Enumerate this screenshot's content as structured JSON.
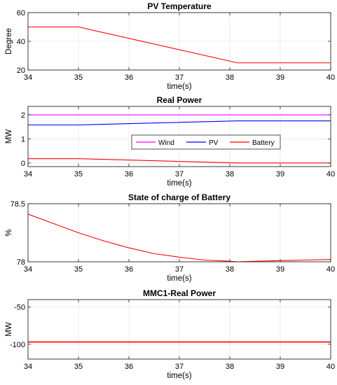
{
  "chart_data": [
    {
      "type": "line",
      "title": "PV Temperature",
      "xlabel": "time(s)",
      "ylabel": "Degree",
      "xlim": [
        34,
        40
      ],
      "ylim": [
        20,
        60
      ],
      "xticks": [
        "34",
        "35",
        "36",
        "37",
        "38",
        "39",
        "40"
      ],
      "yticks": [
        "20",
        "40",
        "60"
      ],
      "grid": true,
      "series": [
        {
          "color": "#ff0000",
          "x": [
            34,
            35,
            38.15,
            40
          ],
          "y": [
            50,
            50,
            25,
            25
          ]
        }
      ]
    },
    {
      "type": "line",
      "title": "Real Power",
      "xlabel": "time(s)",
      "ylabel": "MW",
      "xlim": [
        34,
        40
      ],
      "ylim": [
        -0.15,
        2.35
      ],
      "xticks": [
        "34",
        "35",
        "36",
        "37",
        "38",
        "39",
        "40"
      ],
      "yticks": [
        "0",
        "1",
        "2"
      ],
      "grid": true,
      "legend": "center-right",
      "series": [
        {
          "name": "Wind",
          "color": "#ff00ff",
          "x": [
            34,
            40
          ],
          "y": [
            2.0,
            2.0
          ]
        },
        {
          "name": "PV",
          "color": "#0000ff",
          "x": [
            34,
            35,
            38.15,
            40
          ],
          "y": [
            1.58,
            1.58,
            1.75,
            1.75
          ]
        },
        {
          "name": "Battery",
          "color": "#ff0000",
          "x": [
            34,
            35,
            38.15,
            40
          ],
          "y": [
            0.18,
            0.18,
            0.0,
            0.0
          ]
        }
      ]
    },
    {
      "type": "line",
      "title": "State of charge of Battery",
      "xlabel": "time(s)",
      "ylabel": "%",
      "xlim": [
        34,
        40
      ],
      "ylim": [
        78,
        78.5
      ],
      "xticks": [
        "34",
        "35",
        "36",
        "37",
        "38",
        "39",
        "40"
      ],
      "yticks": [
        "78",
        "78.5"
      ],
      "grid": true,
      "series": [
        {
          "color": "#ff0000",
          "x": [
            34,
            34.5,
            35,
            35.5,
            36,
            36.5,
            37,
            37.5,
            38,
            38.15,
            38.5,
            39,
            39.5,
            40
          ],
          "y": [
            78.41,
            78.33,
            78.25,
            78.18,
            78.12,
            78.07,
            78.04,
            78.015,
            78.005,
            78.0,
            78.005,
            78.01,
            78.015,
            78.02
          ]
        }
      ]
    },
    {
      "type": "line",
      "title": "MMC1-Real Power",
      "xlabel": "time(s)",
      "ylabel": "MW",
      "xlim": [
        34,
        40
      ],
      "ylim": [
        -120,
        -40
      ],
      "xticks": [
        "34",
        "35",
        "36",
        "37",
        "38",
        "39",
        "40"
      ],
      "yticks": [
        "-50",
        "-100"
      ],
      "grid": true,
      "series": [
        {
          "color": "#ff0000",
          "x": [
            34,
            40
          ],
          "y": [
            -97,
            -97
          ]
        }
      ]
    }
  ]
}
